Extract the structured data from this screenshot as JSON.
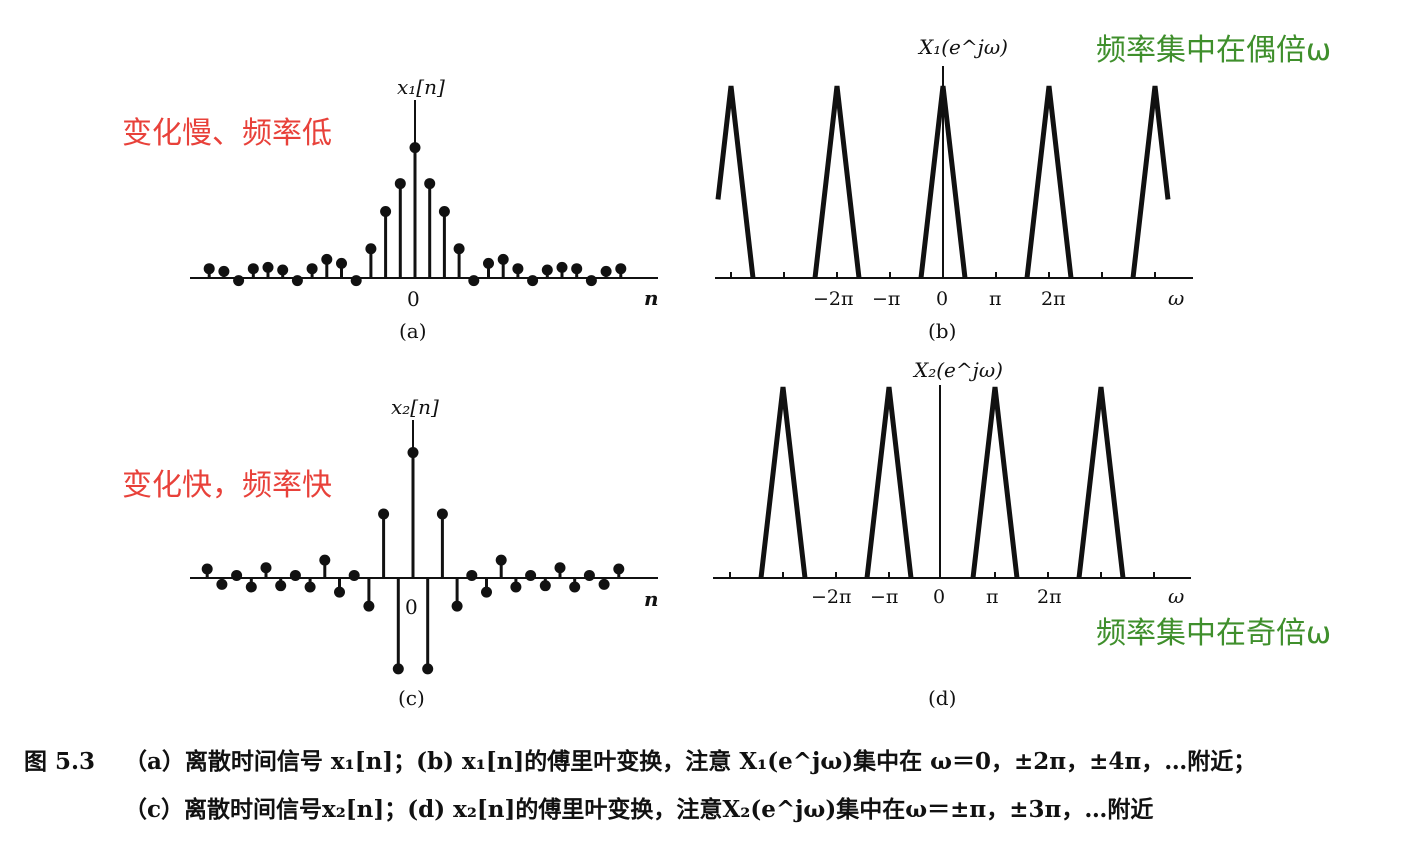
{
  "annotations": {
    "note_a": "变化慢、频率低",
    "note_b": "频率集中在偶倍ω",
    "note_c": "变化快，频率快",
    "note_d": "频率集中在奇倍ω"
  },
  "colors": {
    "red_note": "#e8413a",
    "green_note": "#3f8f2c",
    "ink": "#111111"
  },
  "panels": {
    "a": {
      "title": "x₁[n]",
      "label": "(a)",
      "origin": "0",
      "axis": "n"
    },
    "b": {
      "title": "X₁(e^jω)",
      "label": "(b)",
      "axis": "ω",
      "ticks": [
        "−2π",
        "−π",
        "0",
        "π",
        "2π"
      ]
    },
    "c": {
      "title": "x₂[n]",
      "label": "(c)",
      "origin": "0",
      "axis": "n"
    },
    "d": {
      "title": "X₂(e^jω)",
      "label": "(d)",
      "axis": "ω",
      "ticks": [
        "−2π",
        "−π",
        "0",
        "π",
        "2π"
      ]
    }
  },
  "chart_data": [
    {
      "type": "scatter",
      "panel": "a",
      "n": [
        -14,
        -13,
        -12,
        -11,
        -10,
        -9,
        -8,
        -7,
        -6,
        -5,
        -4,
        -3,
        -2,
        -1,
        0,
        1,
        2,
        3,
        4,
        5,
        6,
        7,
        8,
        9,
        10,
        11,
        12,
        13,
        14
      ],
      "values": [
        0.07,
        0.05,
        -0.02,
        0.07,
        0.08,
        0.06,
        -0.02,
        0.07,
        0.14,
        0.11,
        -0.02,
        0.22,
        0.5,
        0.71,
        0.98,
        0.71,
        0.5,
        0.22,
        -0.02,
        0.11,
        0.14,
        0.07,
        -0.02,
        0.06,
        0.08,
        0.07,
        -0.02,
        0.05,
        0.07
      ]
    },
    {
      "type": "line",
      "panel": "b",
      "peak_centers": [
        "-4π",
        "-2π",
        "0",
        "2π",
        "4π"
      ],
      "shape": "triangular"
    },
    {
      "type": "scatter",
      "panel": "c",
      "n": [
        -14,
        -13,
        -12,
        -11,
        -10,
        -9,
        -8,
        -7,
        -6,
        -5,
        -4,
        -3,
        -2,
        -1,
        0,
        1,
        2,
        3,
        4,
        5,
        6,
        7,
        8,
        9,
        10,
        11,
        12,
        13,
        14
      ],
      "values": [
        0.07,
        -0.05,
        0.02,
        -0.07,
        0.08,
        -0.06,
        0.02,
        -0.07,
        0.14,
        -0.11,
        0.02,
        -0.22,
        0.5,
        -0.71,
        0.98,
        -0.71,
        0.5,
        -0.22,
        0.02,
        -0.11,
        0.14,
        -0.07,
        0.02,
        -0.06,
        0.08,
        -0.07,
        0.02,
        -0.05,
        0.07
      ]
    },
    {
      "type": "line",
      "panel": "d",
      "peak_centers": [
        "-3π",
        "-π",
        "π",
        "3π"
      ],
      "shape": "triangular"
    }
  ],
  "caption": {
    "figure": "图 5.3",
    "line1": "（a）离散时间信号 x₁[n]；(b) x₁[n]的傅里叶变换，注意 X₁(e^jω)集中在 ω＝0，±2π，±4π，…附近；",
    "line2": "（c）离散时间信号x₂[n]；(d) x₂[n]的傅里叶变换，注意X₂(e^jω)集中在ω＝±π，±3π，…附近"
  }
}
